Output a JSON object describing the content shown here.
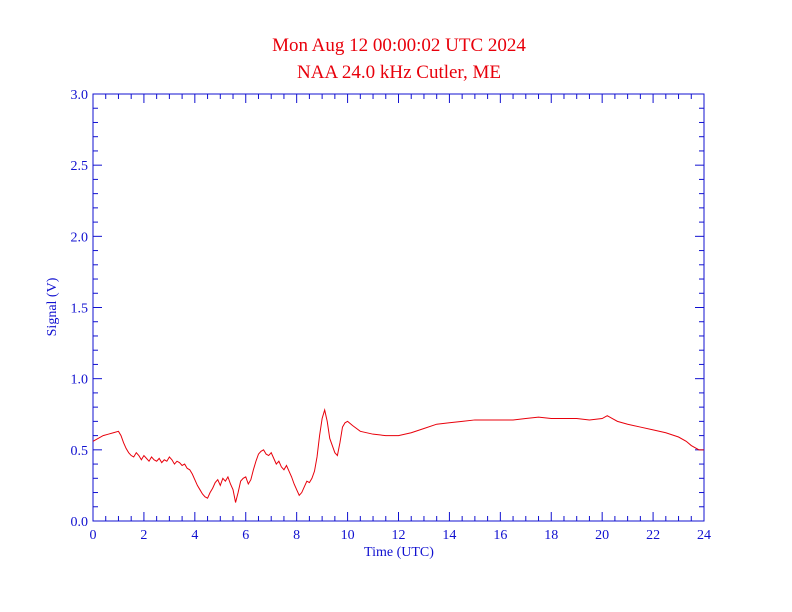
{
  "chart_data": {
    "type": "line",
    "title": "Mon Aug 12 00:00:02 UTC 2024",
    "subtitle": "NAA 24.0 kHz Cutler, ME",
    "xlabel": "Time (UTC)",
    "ylabel": "Signal (V)",
    "xlim": [
      0,
      24
    ],
    "ylim": [
      0,
      3.0
    ],
    "x_ticks": [
      0,
      2,
      4,
      6,
      8,
      10,
      12,
      14,
      16,
      18,
      20,
      22,
      24
    ],
    "x_tick_labels": [
      "0",
      "2",
      "4",
      "6",
      "8",
      "10",
      "12",
      "14",
      "16",
      "18",
      "20",
      "22",
      "24"
    ],
    "y_ticks": [
      0,
      0.5,
      1.0,
      1.5,
      2.0,
      2.5,
      3.0
    ],
    "y_tick_labels": [
      "0.0",
      "0.5",
      "1.0",
      "1.5",
      "2.0",
      "2.5",
      "3.0"
    ],
    "x_minor_step": 0.5,
    "y_minor_step": 0.1,
    "grid": false,
    "colors": {
      "title": "#e8000b",
      "axes": "#1010d0",
      "series": "#e8000b"
    },
    "series": [
      {
        "x": [
          0.0,
          0.2,
          0.4,
          0.6,
          0.8,
          1.0,
          1.1,
          1.2,
          1.3,
          1.4,
          1.5,
          1.6,
          1.7,
          1.8,
          1.9,
          2.0,
          2.1,
          2.2,
          2.3,
          2.4,
          2.5,
          2.6,
          2.7,
          2.8,
          2.9,
          3.0,
          3.1,
          3.2,
          3.3,
          3.4,
          3.5,
          3.6,
          3.7,
          3.8,
          3.9,
          4.0,
          4.1,
          4.2,
          4.3,
          4.4,
          4.5,
          4.6,
          4.7,
          4.8,
          4.9,
          5.0,
          5.1,
          5.2,
          5.3,
          5.4,
          5.5,
          5.6,
          5.7,
          5.8,
          5.9,
          6.0,
          6.1,
          6.2,
          6.3,
          6.4,
          6.5,
          6.6,
          6.7,
          6.8,
          6.9,
          7.0,
          7.1,
          7.2,
          7.3,
          7.4,
          7.5,
          7.6,
          7.7,
          7.8,
          7.9,
          8.0,
          8.1,
          8.2,
          8.3,
          8.4,
          8.5,
          8.6,
          8.7,
          8.8,
          8.9,
          9.0,
          9.1,
          9.2,
          9.3,
          9.4,
          9.5,
          9.6,
          9.7,
          9.8,
          9.9,
          10.0,
          10.2,
          10.5,
          11.0,
          11.5,
          12.0,
          12.5,
          13.0,
          13.5,
          14.0,
          14.5,
          15.0,
          15.5,
          16.0,
          16.5,
          17.0,
          17.5,
          18.0,
          18.5,
          19.0,
          19.5,
          20.0,
          20.2,
          20.4,
          20.6,
          21.0,
          21.5,
          22.0,
          22.5,
          23.0,
          23.3,
          23.5,
          23.8,
          24.0
        ],
        "y": [
          0.56,
          0.58,
          0.6,
          0.61,
          0.62,
          0.63,
          0.6,
          0.55,
          0.51,
          0.48,
          0.46,
          0.45,
          0.48,
          0.46,
          0.43,
          0.46,
          0.44,
          0.42,
          0.45,
          0.43,
          0.42,
          0.44,
          0.41,
          0.43,
          0.42,
          0.45,
          0.43,
          0.4,
          0.42,
          0.41,
          0.39,
          0.4,
          0.37,
          0.36,
          0.33,
          0.29,
          0.25,
          0.22,
          0.19,
          0.17,
          0.16,
          0.2,
          0.23,
          0.27,
          0.29,
          0.25,
          0.3,
          0.28,
          0.31,
          0.26,
          0.22,
          0.13,
          0.2,
          0.28,
          0.3,
          0.31,
          0.26,
          0.29,
          0.36,
          0.42,
          0.47,
          0.49,
          0.5,
          0.47,
          0.46,
          0.48,
          0.44,
          0.4,
          0.42,
          0.38,
          0.36,
          0.39,
          0.35,
          0.31,
          0.26,
          0.22,
          0.18,
          0.2,
          0.24,
          0.28,
          0.27,
          0.3,
          0.35,
          0.45,
          0.6,
          0.72,
          0.78,
          0.7,
          0.58,
          0.53,
          0.48,
          0.46,
          0.55,
          0.66,
          0.69,
          0.7,
          0.67,
          0.63,
          0.61,
          0.6,
          0.6,
          0.62,
          0.65,
          0.68,
          0.69,
          0.7,
          0.71,
          0.71,
          0.71,
          0.71,
          0.72,
          0.73,
          0.72,
          0.72,
          0.72,
          0.71,
          0.72,
          0.74,
          0.72,
          0.7,
          0.68,
          0.66,
          0.64,
          0.62,
          0.59,
          0.56,
          0.53,
          0.5,
          0.5
        ]
      }
    ]
  }
}
